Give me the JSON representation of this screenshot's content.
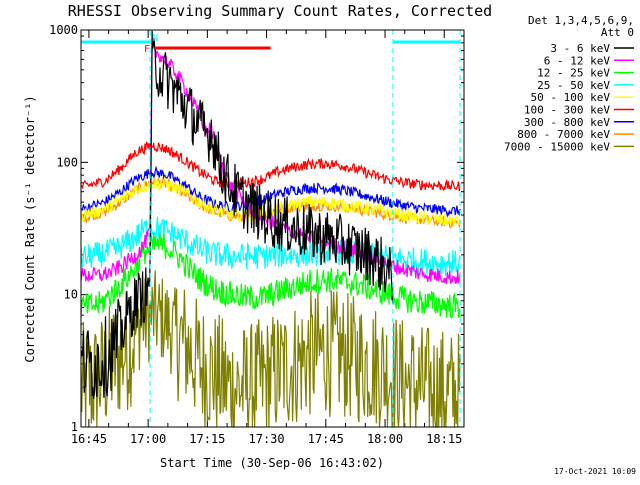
{
  "chart_data": {
    "type": "line",
    "title": "RHESSI Observing Summary Count Rates, Corrected",
    "xlabel": "Start Time (30-Sep-06 16:43:02)",
    "ylabel": "Corrected Count Rate (s⁻¹ detector⁻¹)",
    "yscale": "log",
    "xlim": [
      -2,
      95
    ],
    "ylim": [
      1,
      1000
    ],
    "x_units": "minutes after 16:45",
    "x_ticks": [
      {
        "x": 0,
        "label": "16:45"
      },
      {
        "x": 15,
        "label": "17:00"
      },
      {
        "x": 30,
        "label": "17:15"
      },
      {
        "x": 45,
        "label": "17:30"
      },
      {
        "x": 60,
        "label": "17:45"
      },
      {
        "x": 75,
        "label": "18:00"
      },
      {
        "x": 90,
        "label": "18:15"
      }
    ],
    "y_ticks": [
      {
        "y": 1,
        "label": "1"
      },
      {
        "y": 10,
        "label": "10"
      },
      {
        "y": 100,
        "label": "100"
      },
      {
        "y": 1000,
        "label": "1000"
      }
    ],
    "legend_header": [
      "Det 1,3,4,5,6,9,",
      "Att 0"
    ],
    "legend_position": "right",
    "footer_timestamp": "17-Oct-2021 10:09",
    "flags": [
      {
        "label": "F",
        "color": "#ff0000",
        "x_start": 17,
        "x_end": 46
      },
      {
        "label": "N",
        "color": "#00ffff",
        "x_start": -2,
        "x_end": 15.5
      },
      {
        "label": "",
        "color": "#00ffff",
        "x_start": 77,
        "x_end": 94
      }
    ],
    "vertical_markers": [
      {
        "x": -2,
        "color": "#00ffff",
        "style": "solid"
      },
      {
        "x": 15.5,
        "color": "#00ffff",
        "style": "dashed"
      },
      {
        "x": 77,
        "color": "#00ffff",
        "style": "dashed"
      },
      {
        "x": 94,
        "color": "#00ffff",
        "style": "dashed"
      }
    ],
    "series": [
      {
        "name": "3 - 6 keV",
        "color": "#000000",
        "noise": 0.22,
        "x": [
          -2,
          1,
          5,
          8,
          10,
          12,
          14,
          15,
          15.5,
          16,
          18,
          21,
          24,
          27,
          30,
          31,
          33,
          36,
          40,
          44,
          48,
          52,
          56,
          60,
          63,
          66,
          69,
          72,
          75,
          77
        ],
        "y": [
          3,
          3,
          3.5,
          5,
          7,
          9,
          10,
          10,
          18,
          600,
          480,
          380,
          280,
          210,
          160,
          175,
          100,
          65,
          48,
          40,
          35,
          32,
          29,
          27,
          25,
          23,
          21,
          19,
          16,
          13
        ]
      },
      {
        "name": "6 - 12 keV",
        "color": "#ff00ff",
        "noise": 0.06,
        "x": [
          -2,
          3,
          6,
          9,
          12,
          14,
          15.5,
          16,
          18,
          22,
          26,
          30,
          31,
          33,
          36,
          40,
          44,
          48,
          52,
          56,
          60,
          64,
          68,
          72,
          76,
          80,
          84,
          88,
          92,
          94
        ],
        "y": [
          14,
          14,
          15,
          17,
          20,
          24,
          30,
          700,
          650,
          480,
          300,
          170,
          180,
          110,
          65,
          48,
          38,
          33,
          30,
          27,
          25,
          23,
          21,
          19,
          17,
          15.5,
          14.5,
          14,
          13.5,
          13.5
        ]
      },
      {
        "name": "12 - 25 keV",
        "color": "#00ff00",
        "noise": 0.1,
        "x": [
          -2,
          3,
          7,
          11,
          14,
          17,
          20,
          23,
          26,
          29,
          32,
          36,
          40,
          44,
          48,
          52,
          56,
          60,
          64,
          68,
          72,
          76,
          80,
          84,
          88,
          92,
          94
        ],
        "y": [
          8,
          8.5,
          11,
          15,
          21,
          24,
          23,
          19,
          15,
          12.5,
          11,
          10,
          9.5,
          9.5,
          10.5,
          11.5,
          12.5,
          13,
          12.5,
          12,
          11,
          10,
          9.2,
          8.8,
          8.5,
          8.2,
          8
        ]
      },
      {
        "name": "25 - 50 keV",
        "color": "#00ffff",
        "noise": 0.1,
        "x": [
          -2,
          3,
          7,
          11,
          14,
          17,
          20,
          24,
          28,
          32,
          36,
          40,
          44,
          48,
          52,
          56,
          60,
          64,
          68,
          72,
          76,
          80,
          84,
          88,
          92,
          94
        ],
        "y": [
          19,
          20,
          22,
          26,
          31,
          32,
          30,
          26,
          22,
          20,
          19.5,
          19.5,
          19.5,
          20,
          20,
          20.5,
          21,
          21,
          20,
          19.5,
          19,
          18.5,
          18,
          17.5,
          17.5,
          17
        ]
      },
      {
        "name": "50 - 100 keV",
        "color": "#ffff00",
        "noise": 0.05,
        "x": [
          -2,
          4,
          8,
          12,
          16,
          20,
          24,
          28,
          32,
          36,
          40,
          44,
          48,
          52,
          56,
          60,
          64,
          68,
          72,
          76,
          80,
          84,
          88,
          92,
          94
        ],
        "y": [
          40,
          44,
          52,
          62,
          70,
          68,
          60,
          50,
          44,
          40,
          40,
          42,
          45,
          48,
          50,
          50,
          48,
          46,
          44,
          42,
          40,
          38,
          37,
          36,
          36
        ]
      },
      {
        "name": "100 - 300 keV",
        "color": "#ff0000",
        "noise": 0.04,
        "x": [
          -2,
          4,
          8,
          12,
          16,
          20,
          24,
          28,
          32,
          36,
          40,
          44,
          48,
          52,
          56,
          60,
          64,
          68,
          72,
          76,
          80,
          84,
          88,
          92,
          94
        ],
        "y": [
          65,
          72,
          90,
          120,
          135,
          125,
          105,
          85,
          72,
          68,
          70,
          75,
          85,
          92,
          97,
          98,
          95,
          88,
          80,
          74,
          70,
          68,
          67,
          66,
          66
        ]
      },
      {
        "name": "300 - 800 keV",
        "color": "#0000ff",
        "noise": 0.04,
        "x": [
          -2,
          4,
          8,
          12,
          16,
          20,
          24,
          28,
          32,
          36,
          40,
          44,
          48,
          52,
          56,
          60,
          64,
          68,
          72,
          76,
          80,
          84,
          88,
          92,
          94
        ],
        "y": [
          44,
          50,
          60,
          75,
          85,
          80,
          68,
          55,
          48,
          46,
          48,
          52,
          58,
          62,
          64,
          64,
          62,
          58,
          54,
          50,
          47,
          45,
          44,
          43,
          43
        ]
      },
      {
        "name": "800 - 7000 keV",
        "color": "#ff8800",
        "noise": 0.04,
        "x": [
          -2,
          4,
          8,
          12,
          16,
          20,
          24,
          28,
          32,
          36,
          40,
          44,
          48,
          52,
          56,
          60,
          64,
          68,
          72,
          76,
          80,
          84,
          88,
          92,
          94
        ],
        "y": [
          38,
          42,
          50,
          62,
          72,
          68,
          58,
          48,
          42,
          39,
          39,
          41,
          44,
          46,
          47,
          47,
          46,
          44,
          42,
          40,
          38,
          37,
          36,
          35,
          35
        ]
      },
      {
        "name": "7000 - 15000 keV",
        "color": "#808000",
        "noise": 0.35,
        "x": [
          -2,
          2,
          6,
          10,
          13,
          16,
          19,
          22,
          25,
          28,
          32,
          36,
          40,
          44,
          48,
          52,
          56,
          60,
          64,
          68,
          72,
          76,
          80,
          84,
          88,
          92,
          94
        ],
        "y": [
          2,
          2.2,
          3,
          4,
          6,
          7,
          6.5,
          5,
          4,
          3,
          2.5,
          2,
          2,
          2.2,
          2.6,
          3,
          3.5,
          3.7,
          3.5,
          3.2,
          3,
          2.6,
          2.2,
          2,
          1.9,
          1.8,
          1.8
        ]
      }
    ]
  }
}
